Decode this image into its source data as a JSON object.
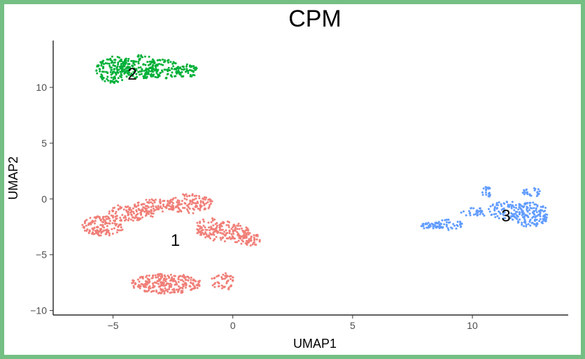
{
  "chart_data": {
    "type": "scatter",
    "title": "CPM",
    "xlabel": "UMAP1",
    "ylabel": "UMAP2",
    "xlim": [
      -7.5,
      14
    ],
    "ylim": [
      -10.4,
      14.2
    ],
    "xticks": [
      -5,
      0,
      5,
      10
    ],
    "yticks": [
      -10,
      -5,
      0,
      5,
      10
    ],
    "grid": false,
    "legend": "none",
    "frame_color": "#74bf83",
    "series": [
      {
        "cluster": "1",
        "color": "#f07f78",
        "label_position": [
          -2.4,
          -3.7
        ],
        "regions": [
          {
            "cx": -5.4,
            "cy": -2.4,
            "rx": 0.9,
            "ry": 0.9,
            "n": 140
          },
          {
            "cx": -4.2,
            "cy": -1.2,
            "rx": 1.0,
            "ry": 0.8,
            "n": 110
          },
          {
            "cx": -3.2,
            "cy": -0.6,
            "rx": 0.9,
            "ry": 0.6,
            "n": 80
          },
          {
            "cx": -1.8,
            "cy": -0.4,
            "rx": 1.0,
            "ry": 0.9,
            "n": 120
          },
          {
            "cx": -1.0,
            "cy": -2.6,
            "rx": 0.6,
            "ry": 0.9,
            "n": 70
          },
          {
            "cx": -0.2,
            "cy": -3.0,
            "rx": 0.9,
            "ry": 1.0,
            "n": 120
          },
          {
            "cx": 0.7,
            "cy": -3.6,
            "rx": 0.5,
            "ry": 0.6,
            "n": 55
          },
          {
            "cx": -2.8,
            "cy": -7.6,
            "rx": 1.5,
            "ry": 0.9,
            "n": 260
          },
          {
            "cx": -0.4,
            "cy": -7.4,
            "rx": 0.5,
            "ry": 0.8,
            "n": 50
          }
        ]
      },
      {
        "cluster": "2",
        "color": "#00b038",
        "label_position": [
          -4.2,
          11.2
        ],
        "regions": [
          {
            "cx": -5.0,
            "cy": 11.6,
            "rx": 0.7,
            "ry": 1.2,
            "n": 140
          },
          {
            "cx": -3.9,
            "cy": 11.8,
            "rx": 0.8,
            "ry": 1.1,
            "n": 150
          },
          {
            "cx": -2.9,
            "cy": 11.6,
            "rx": 0.7,
            "ry": 0.9,
            "n": 90
          },
          {
            "cx": -1.9,
            "cy": 11.5,
            "rx": 0.5,
            "ry": 0.6,
            "n": 60
          }
        ]
      },
      {
        "cluster": "3",
        "color": "#619cff",
        "label_position": [
          11.4,
          -1.5
        ],
        "regions": [
          {
            "cx": 8.3,
            "cy": -2.4,
            "rx": 0.5,
            "ry": 0.3,
            "n": 35
          },
          {
            "cx": 9.0,
            "cy": -2.3,
            "rx": 0.6,
            "ry": 0.5,
            "n": 45
          },
          {
            "cx": 10.1,
            "cy": -1.2,
            "rx": 0.6,
            "ry": 0.4,
            "n": 30
          },
          {
            "cx": 10.6,
            "cy": 0.6,
            "rx": 0.2,
            "ry": 0.5,
            "n": 20
          },
          {
            "cx": 11.4,
            "cy": -1.0,
            "rx": 0.8,
            "ry": 0.8,
            "n": 70
          },
          {
            "cx": 12.4,
            "cy": -1.4,
            "rx": 0.8,
            "ry": 1.1,
            "n": 160
          },
          {
            "cx": 12.5,
            "cy": 0.6,
            "rx": 0.4,
            "ry": 0.4,
            "n": 25
          }
        ]
      }
    ]
  }
}
